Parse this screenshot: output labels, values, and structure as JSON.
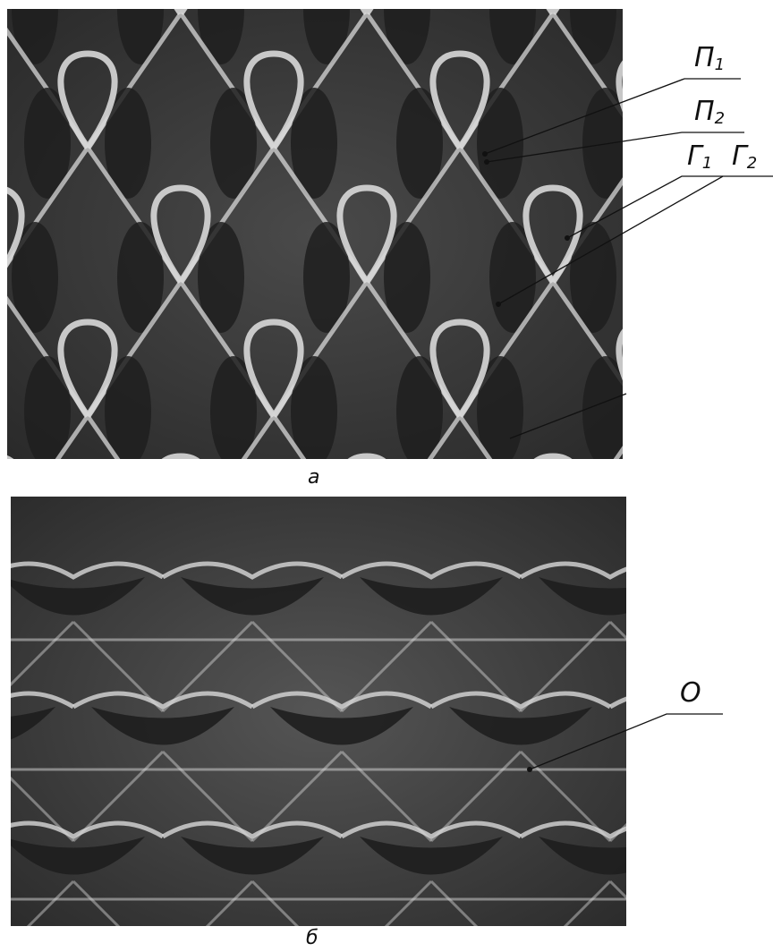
{
  "figure": {
    "panels": [
      {
        "caption": "а",
        "labels": [
          {
            "main": "П",
            "sub": "1"
          },
          {
            "main": "П",
            "sub": "2"
          },
          {
            "main": "Г",
            "sub": "1"
          },
          {
            "main": "Г",
            "sub": "2"
          }
        ]
      },
      {
        "caption": "б",
        "labels": [
          {
            "main": "О",
            "sub": ""
          }
        ]
      }
    ],
    "colors": {
      "background": "#3a3a3a",
      "yarn_light": "#d8d8d8",
      "yarn_dark": "#1e1e1e",
      "leader": "#111111"
    }
  }
}
